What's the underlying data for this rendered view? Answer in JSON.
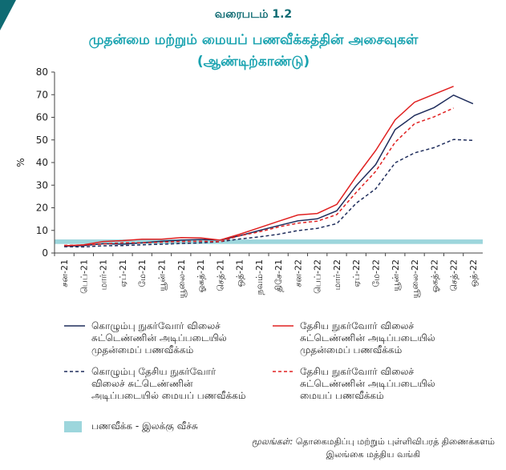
{
  "chart_data": {
    "type": "line",
    "title": "வரைபடம் 1.2",
    "subtitle": "முதன்மை மற்றும் மையப் பணவீக்கத்தின் அசைவுகள்",
    "subtitle2": "(ஆண்டிற்காண்டு)",
    "y_label": "%",
    "categories": [
      "சன-21",
      "பெப்-21",
      "மார்-21",
      "ஏப்-21",
      "மே-21",
      "யூன்-21",
      "யூலை-21",
      "ஓகத்-21",
      "செத்-21",
      "ஒத்-21",
      "நவம்-21",
      "திசே-21",
      "சன-22",
      "பெப்-22",
      "மார்-22",
      "ஏப்-22",
      "மே-22",
      "யூன்-22",
      "யூலை-22",
      "ஓகத்-22",
      "செத்-22",
      "ஒத்-22"
    ],
    "series": [
      {
        "name": "கொழும்பு நுகர்வோர் விலைச் சுட்டெண்ணின் அடிப்படையில் முதன்மைப் பணவீக்கம்",
        "color": "#1f2d5c",
        "dashed": false,
        "values": [
          3.0,
          3.3,
          4.1,
          3.9,
          4.5,
          5.2,
          5.7,
          6.0,
          5.7,
          7.6,
          9.9,
          12.1,
          14.2,
          15.1,
          18.7,
          29.8,
          39.1,
          54.6,
          60.8,
          64.3,
          69.8,
          66.0
        ]
      },
      {
        "name": "தேசிய நுகர்வோர் விலைச் சுட்டெண்ணின் அடிப்படையில் முதன்மைப் பணவீக்கம்",
        "color": "#e02020",
        "dashed": false,
        "values": [
          3.2,
          3.6,
          5.1,
          5.5,
          6.1,
          6.1,
          6.8,
          6.7,
          5.7,
          8.3,
          11.1,
          14.0,
          16.8,
          17.5,
          21.5,
          33.8,
          45.3,
          58.9,
          66.7,
          70.2,
          73.7,
          null
        ]
      },
      {
        "name": "கொழும்பு தேசிய நுகர்வோர் விலைச் சுட்டெண்ணின் அடிப்படையில் மையப் பணவீக்கம்",
        "color": "#1f2d5c",
        "dashed": true,
        "values": [
          2.8,
          2.7,
          3.2,
          3.3,
          3.6,
          3.9,
          4.2,
          4.5,
          5.0,
          6.2,
          7.1,
          8.3,
          9.9,
          10.9,
          13.0,
          22.0,
          28.4,
          39.9,
          44.3,
          46.6,
          50.2,
          49.8
        ]
      },
      {
        "name": "தேசிய நுகர்வோர் விலைச் சுட்டெண்ணின் அடிப்படையில் மையப் பணவீக்கம்",
        "color": "#e02020",
        "dashed": true,
        "values": [
          3.4,
          3.5,
          4.0,
          4.5,
          4.5,
          4.8,
          5.1,
          5.2,
          5.0,
          7.6,
          9.3,
          11.5,
          13.2,
          14.1,
          17.0,
          26.8,
          36.1,
          49.0,
          57.2,
          60.2,
          64.1,
          null
        ]
      }
    ],
    "target_band": {
      "name": "பணவீக்க - இலக்கு வீச்சு",
      "range": [
        4,
        6
      ],
      "color": "#9dd6dc"
    },
    "ylim": [
      0,
      80
    ],
    "yticks": [
      0,
      10,
      20,
      30,
      40,
      50,
      60,
      70,
      80
    ],
    "source_label": "மூலங்கள்:",
    "source_lines": [
      "தொகைமதிப்பு மற்றும் புள்ளிவிபரத் திணைக்களம்",
      "இலங்கை மத்திய வங்கி"
    ]
  }
}
